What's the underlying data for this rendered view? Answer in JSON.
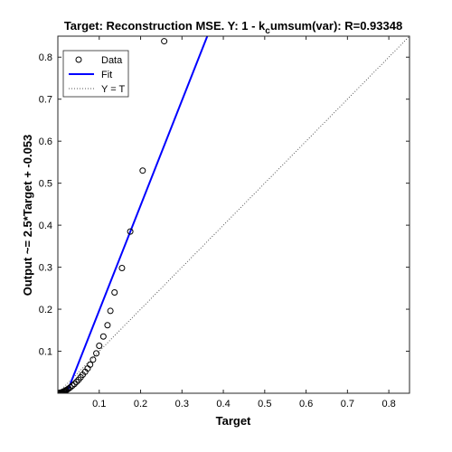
{
  "chart_data": {
    "type": "scatter",
    "title_prefix": "Target: Reconstruction MSE. Y: 1 - k",
    "title_subscript": "c",
    "title_suffix": "umsum(var): R=0.93348",
    "xlabel": "Target",
    "ylabel": "Output ~= 2.5*Target + -0.053",
    "xlim": [
      0,
      0.85
    ],
    "ylim": [
      0,
      0.85
    ],
    "xticks": [
      0.1,
      0.2,
      0.3,
      0.4,
      0.5,
      0.6,
      0.7,
      0.8
    ],
    "yticks": [
      0.1,
      0.2,
      0.3,
      0.4,
      0.5,
      0.6,
      0.7,
      0.8
    ],
    "grid": false,
    "legend_position": "top-left",
    "series": [
      {
        "name": "Data",
        "style": "marker-circle",
        "color": "#000000",
        "x": [
          0.0,
          0.002,
          0.004,
          0.006,
          0.008,
          0.01,
          0.012,
          0.014,
          0.016,
          0.018,
          0.02,
          0.023,
          0.026,
          0.03,
          0.035,
          0.04,
          0.045,
          0.05,
          0.055,
          0.06,
          0.066,
          0.072,
          0.078,
          0.085,
          0.093,
          0.1,
          0.11,
          0.12,
          0.127,
          0.137,
          0.155,
          0.175,
          0.205,
          0.257
        ],
        "y": [
          0.0,
          0.0,
          0.001,
          0.001,
          0.002,
          0.002,
          0.003,
          0.004,
          0.005,
          0.006,
          0.007,
          0.009,
          0.011,
          0.014,
          0.018,
          0.022,
          0.027,
          0.032,
          0.038,
          0.044,
          0.051,
          0.059,
          0.068,
          0.08,
          0.095,
          0.113,
          0.135,
          0.162,
          0.196,
          0.24,
          0.298,
          0.385,
          0.53,
          0.838
        ]
      },
      {
        "name": "Fit",
        "style": "line",
        "color": "#0000ff",
        "slope": 2.5,
        "intercept": -0.053
      },
      {
        "name": "Y = T",
        "style": "dotted",
        "color": "#555555",
        "slope": 1,
        "intercept": 0
      }
    ]
  }
}
